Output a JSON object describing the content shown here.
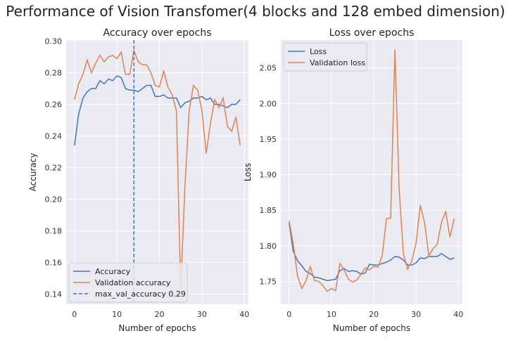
{
  "figure_title": "Performance of Vision Transfomer(4 blocks and 128 embed dimension)",
  "chart_data": [
    {
      "type": "line",
      "title": "Accuracy over epochs",
      "xlabel": "Number of epochs",
      "ylabel": "Accuracy",
      "xlim": [
        -1.95,
        40.95
      ],
      "ylim": [
        0.1335,
        0.3007
      ],
      "xticks": [
        0,
        10,
        20,
        30,
        40
      ],
      "yticks": [
        0.14,
        0.16,
        0.18,
        0.2,
        0.22,
        0.24,
        0.26,
        0.28,
        0.3
      ],
      "ytick_labels": [
        "0.14",
        "0.16",
        "0.18",
        "0.20",
        "0.22",
        "0.24",
        "0.26",
        "0.28",
        "0.30"
      ],
      "grid": true,
      "legend_position": "lower left",
      "x": [
        0,
        1,
        2,
        3,
        4,
        5,
        6,
        7,
        8,
        9,
        10,
        11,
        12,
        13,
        14,
        15,
        16,
        17,
        18,
        19,
        20,
        21,
        22,
        23,
        24,
        25,
        26,
        27,
        28,
        29,
        30,
        31,
        32,
        33,
        34,
        35,
        36,
        37,
        38,
        39
      ],
      "series": [
        {
          "name": "Accuracy",
          "color": "#4c72b0",
          "values": [
            0.234,
            0.254,
            0.264,
            0.268,
            0.27,
            0.27,
            0.275,
            0.273,
            0.276,
            0.275,
            0.278,
            0.277,
            0.27,
            0.269,
            0.269,
            0.268,
            0.27,
            0.272,
            0.272,
            0.265,
            0.265,
            0.266,
            0.264,
            0.264,
            0.264,
            0.258,
            0.261,
            0.262,
            0.264,
            0.264,
            0.265,
            0.263,
            0.264,
            0.26,
            0.26,
            0.259,
            0.258,
            0.26,
            0.26,
            0.263
          ]
        },
        {
          "name": "Validation accuracy",
          "color": "#dd8452",
          "values": [
            0.263,
            0.273,
            0.279,
            0.288,
            0.28,
            0.286,
            0.291,
            0.287,
            0.29,
            0.291,
            0.289,
            0.293,
            0.279,
            0.279,
            0.294,
            0.287,
            0.285,
            0.285,
            0.28,
            0.272,
            0.271,
            0.281,
            0.271,
            0.266,
            0.256,
            0.143,
            0.208,
            0.256,
            0.272,
            0.269,
            0.256,
            0.229,
            0.248,
            0.263,
            0.258,
            0.264,
            0.246,
            0.243,
            0.252,
            0.234
          ]
        }
      ],
      "vline": {
        "x": 14,
        "name": "max_val_accuracy 0.29",
        "color": "#4c72b0",
        "style": "dashed"
      }
    },
    {
      "type": "line",
      "title": "Loss over epochs",
      "xlabel": "Number of epochs",
      "ylabel": "Loss",
      "xlim": [
        -1.95,
        40.95
      ],
      "ylim": [
        1.7178,
        2.0892
      ],
      "xticks": [
        0,
        10,
        20,
        30,
        40
      ],
      "yticks": [
        1.75,
        1.8,
        1.85,
        1.9,
        1.95,
        2.0,
        2.05
      ],
      "ytick_labels": [
        "1.75",
        "1.80",
        "1.85",
        "1.90",
        "1.95",
        "2.00",
        "2.05"
      ],
      "grid": true,
      "legend_position": "upper left",
      "x": [
        0,
        1,
        2,
        3,
        4,
        5,
        6,
        7,
        8,
        9,
        10,
        11,
        12,
        13,
        14,
        15,
        16,
        17,
        18,
        19,
        20,
        21,
        22,
        23,
        24,
        25,
        26,
        27,
        28,
        29,
        30,
        31,
        32,
        33,
        34,
        35,
        36,
        37,
        38,
        39
      ],
      "series": [
        {
          "name": "Loss",
          "color": "#4c72b0",
          "values": [
            1.832,
            1.792,
            1.779,
            1.772,
            1.764,
            1.761,
            1.756,
            1.755,
            1.753,
            1.751,
            1.752,
            1.753,
            1.765,
            1.768,
            1.764,
            1.765,
            1.764,
            1.76,
            1.762,
            1.774,
            1.773,
            1.773,
            1.775,
            1.777,
            1.78,
            1.785,
            1.784,
            1.78,
            1.773,
            1.773,
            1.776,
            1.783,
            1.782,
            1.785,
            1.785,
            1.785,
            1.789,
            1.785,
            1.781,
            1.783
          ]
        },
        {
          "name": "Validation loss",
          "color": "#dd8452",
          "values": [
            1.835,
            1.802,
            1.757,
            1.74,
            1.751,
            1.771,
            1.751,
            1.75,
            1.744,
            1.736,
            1.74,
            1.737,
            1.775,
            1.766,
            1.753,
            1.749,
            1.752,
            1.76,
            1.769,
            1.766,
            1.771,
            1.77,
            1.786,
            1.838,
            1.839,
            2.076,
            1.88,
            1.789,
            1.767,
            1.779,
            1.804,
            1.857,
            1.833,
            1.786,
            1.796,
            1.802,
            1.833,
            1.848,
            1.812,
            1.838
          ]
        }
      ]
    }
  ]
}
